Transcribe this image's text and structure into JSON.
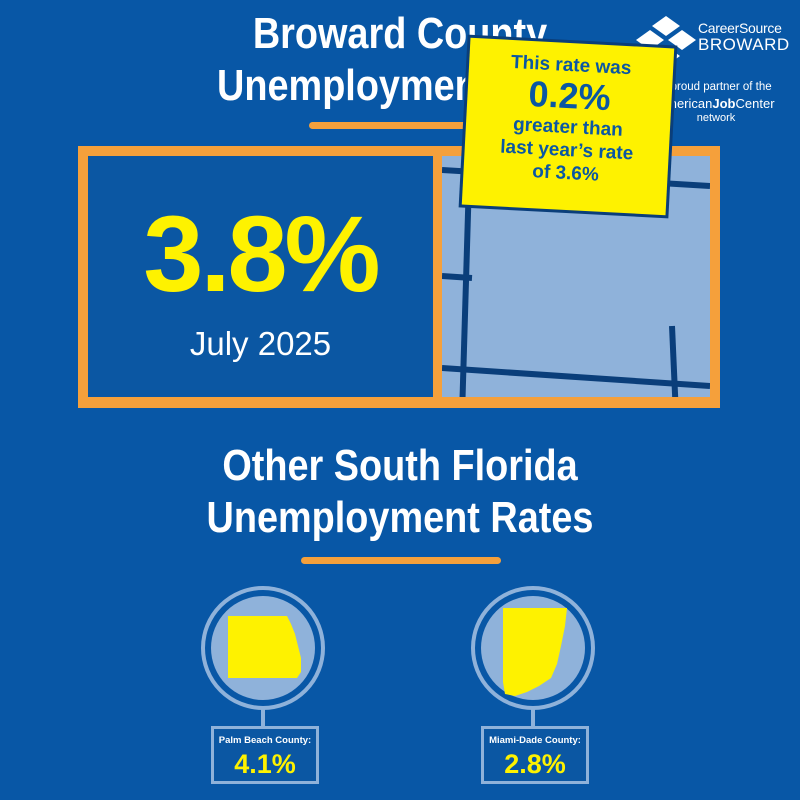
{
  "header": {
    "title_line1": "Broward County",
    "title_line2": "Unemployment Rate"
  },
  "logo": {
    "brand_line1": "CareerSource",
    "brand_line2": "BROWARD",
    "partner_text": "A proud partner of the",
    "ajc_part1": "American",
    "ajc_part2": "Job",
    "ajc_part3": "Center",
    "network_text": "network"
  },
  "main_rate": {
    "value": "3.8%",
    "period": "July 2025"
  },
  "callout": {
    "line1": "This rate was",
    "change": "0.2%",
    "line3": "greater than",
    "line4": "last year’s rate",
    "line5": "of 3.6%"
  },
  "section": {
    "title_line1": "Other South Florida",
    "title_line2": "Unemployment Rates"
  },
  "counties": [
    {
      "name": "Palm Beach County:",
      "rate": "4.1%"
    },
    {
      "name": "Miami-Dade County:",
      "rate": "2.8%"
    }
  ],
  "colors": {
    "background": "#0857a6",
    "accent_orange": "#f5a03b",
    "highlight_yellow": "#fef200",
    "light_blue": "#8fb2da"
  }
}
